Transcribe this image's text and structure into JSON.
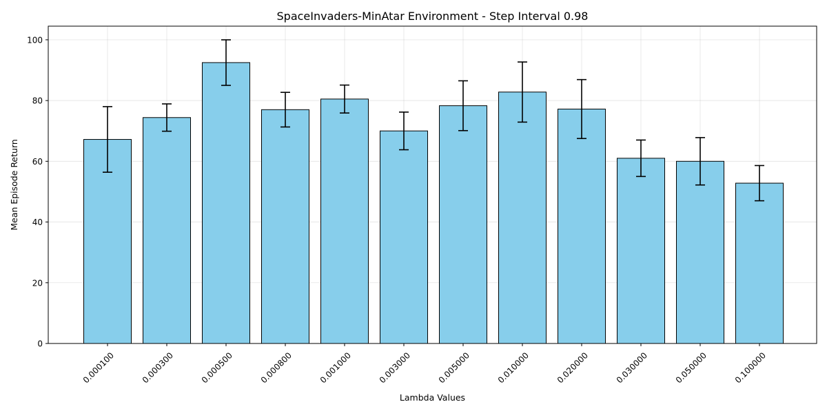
{
  "chart_data": {
    "type": "bar",
    "title": "SpaceInvaders-MinAtar Environment - Step Interval 0.98",
    "xlabel": "Lambda Values",
    "ylabel": "Mean Episode Return",
    "categories": [
      "0.000100",
      "0.000300",
      "0.000500",
      "0.000800",
      "0.001000",
      "0.003000",
      "0.005000",
      "0.010000",
      "0.020000",
      "0.030000",
      "0.050000",
      "0.100000"
    ],
    "values": [
      67.2,
      74.4,
      92.5,
      77.0,
      80.5,
      70.0,
      78.3,
      82.8,
      77.2,
      61.0,
      60.0,
      52.8
    ],
    "errors": [
      10.8,
      4.5,
      7.5,
      5.7,
      4.6,
      6.2,
      8.2,
      9.9,
      9.7,
      6.0,
      7.8,
      5.8
    ],
    "yticks": [
      0,
      20,
      40,
      60,
      80,
      100
    ],
    "ylim": [
      0,
      104.5
    ],
    "grid": true,
    "bar_color": "#87CEEB",
    "edge_color": "#000000"
  }
}
